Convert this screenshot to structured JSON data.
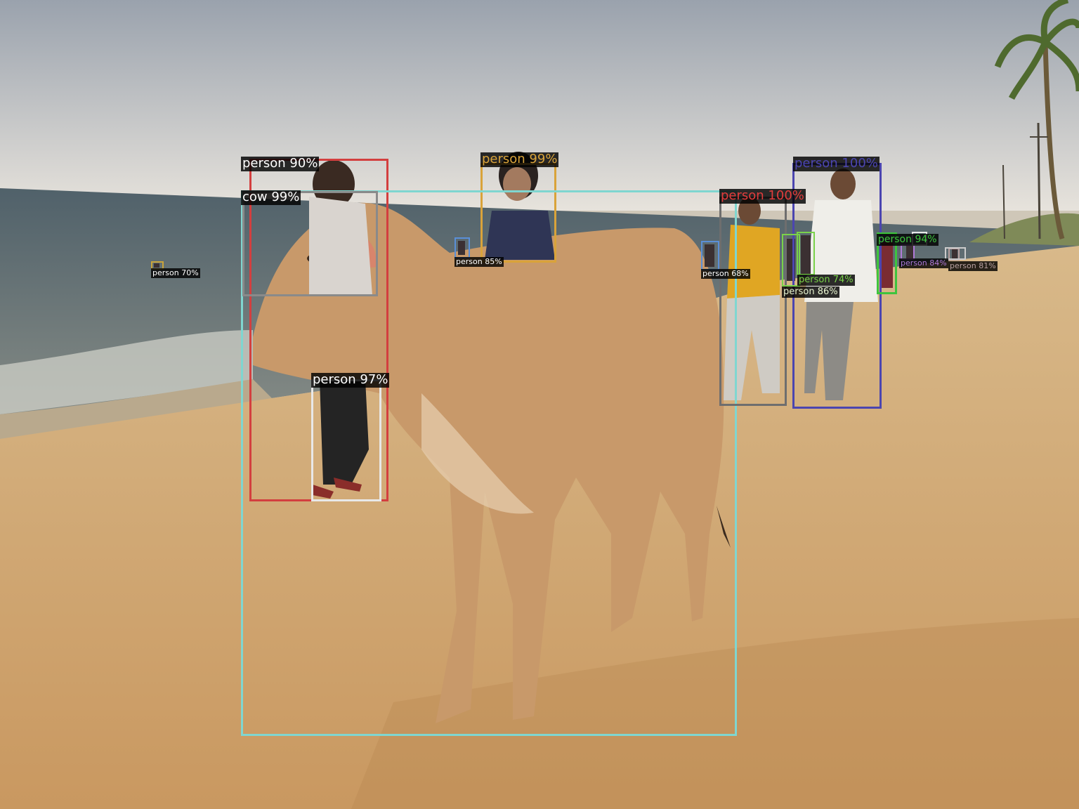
{
  "detections": [
    {
      "label": "person 90%",
      "color": "#d33f3f"
    },
    {
      "label": "person 99%",
      "color": "#d9a33a"
    },
    {
      "label": "person 100%",
      "color": "#4b45b0"
    },
    {
      "label": "cow 99%",
      "color": "#7fd6d0"
    },
    {
      "label": "person 100%",
      "color": "#6e6e6e"
    },
    {
      "label": "person 97%",
      "color": "#e8e8e8"
    },
    {
      "label": "person 85%",
      "color": "#5a8fd8"
    },
    {
      "label": "person 70%",
      "color": "#c9a43a"
    },
    {
      "label": "person 68%",
      "color": "#5a8fd8"
    },
    {
      "label": "person 94%",
      "color": "#3ec43e"
    },
    {
      "label": "person 74%",
      "color": "#7ad24a"
    },
    {
      "label": "person 86%",
      "color": "#7ad24a"
    },
    {
      "label": "person 84%",
      "color": "#b07ad8"
    },
    {
      "label": "person 81%",
      "color": "#b8a0a0"
    }
  ],
  "colors": {
    "sky": "#dcdad6",
    "sea": "#5a6a6e",
    "sand": "#d2a56a",
    "cow": "#c79a6c"
  }
}
